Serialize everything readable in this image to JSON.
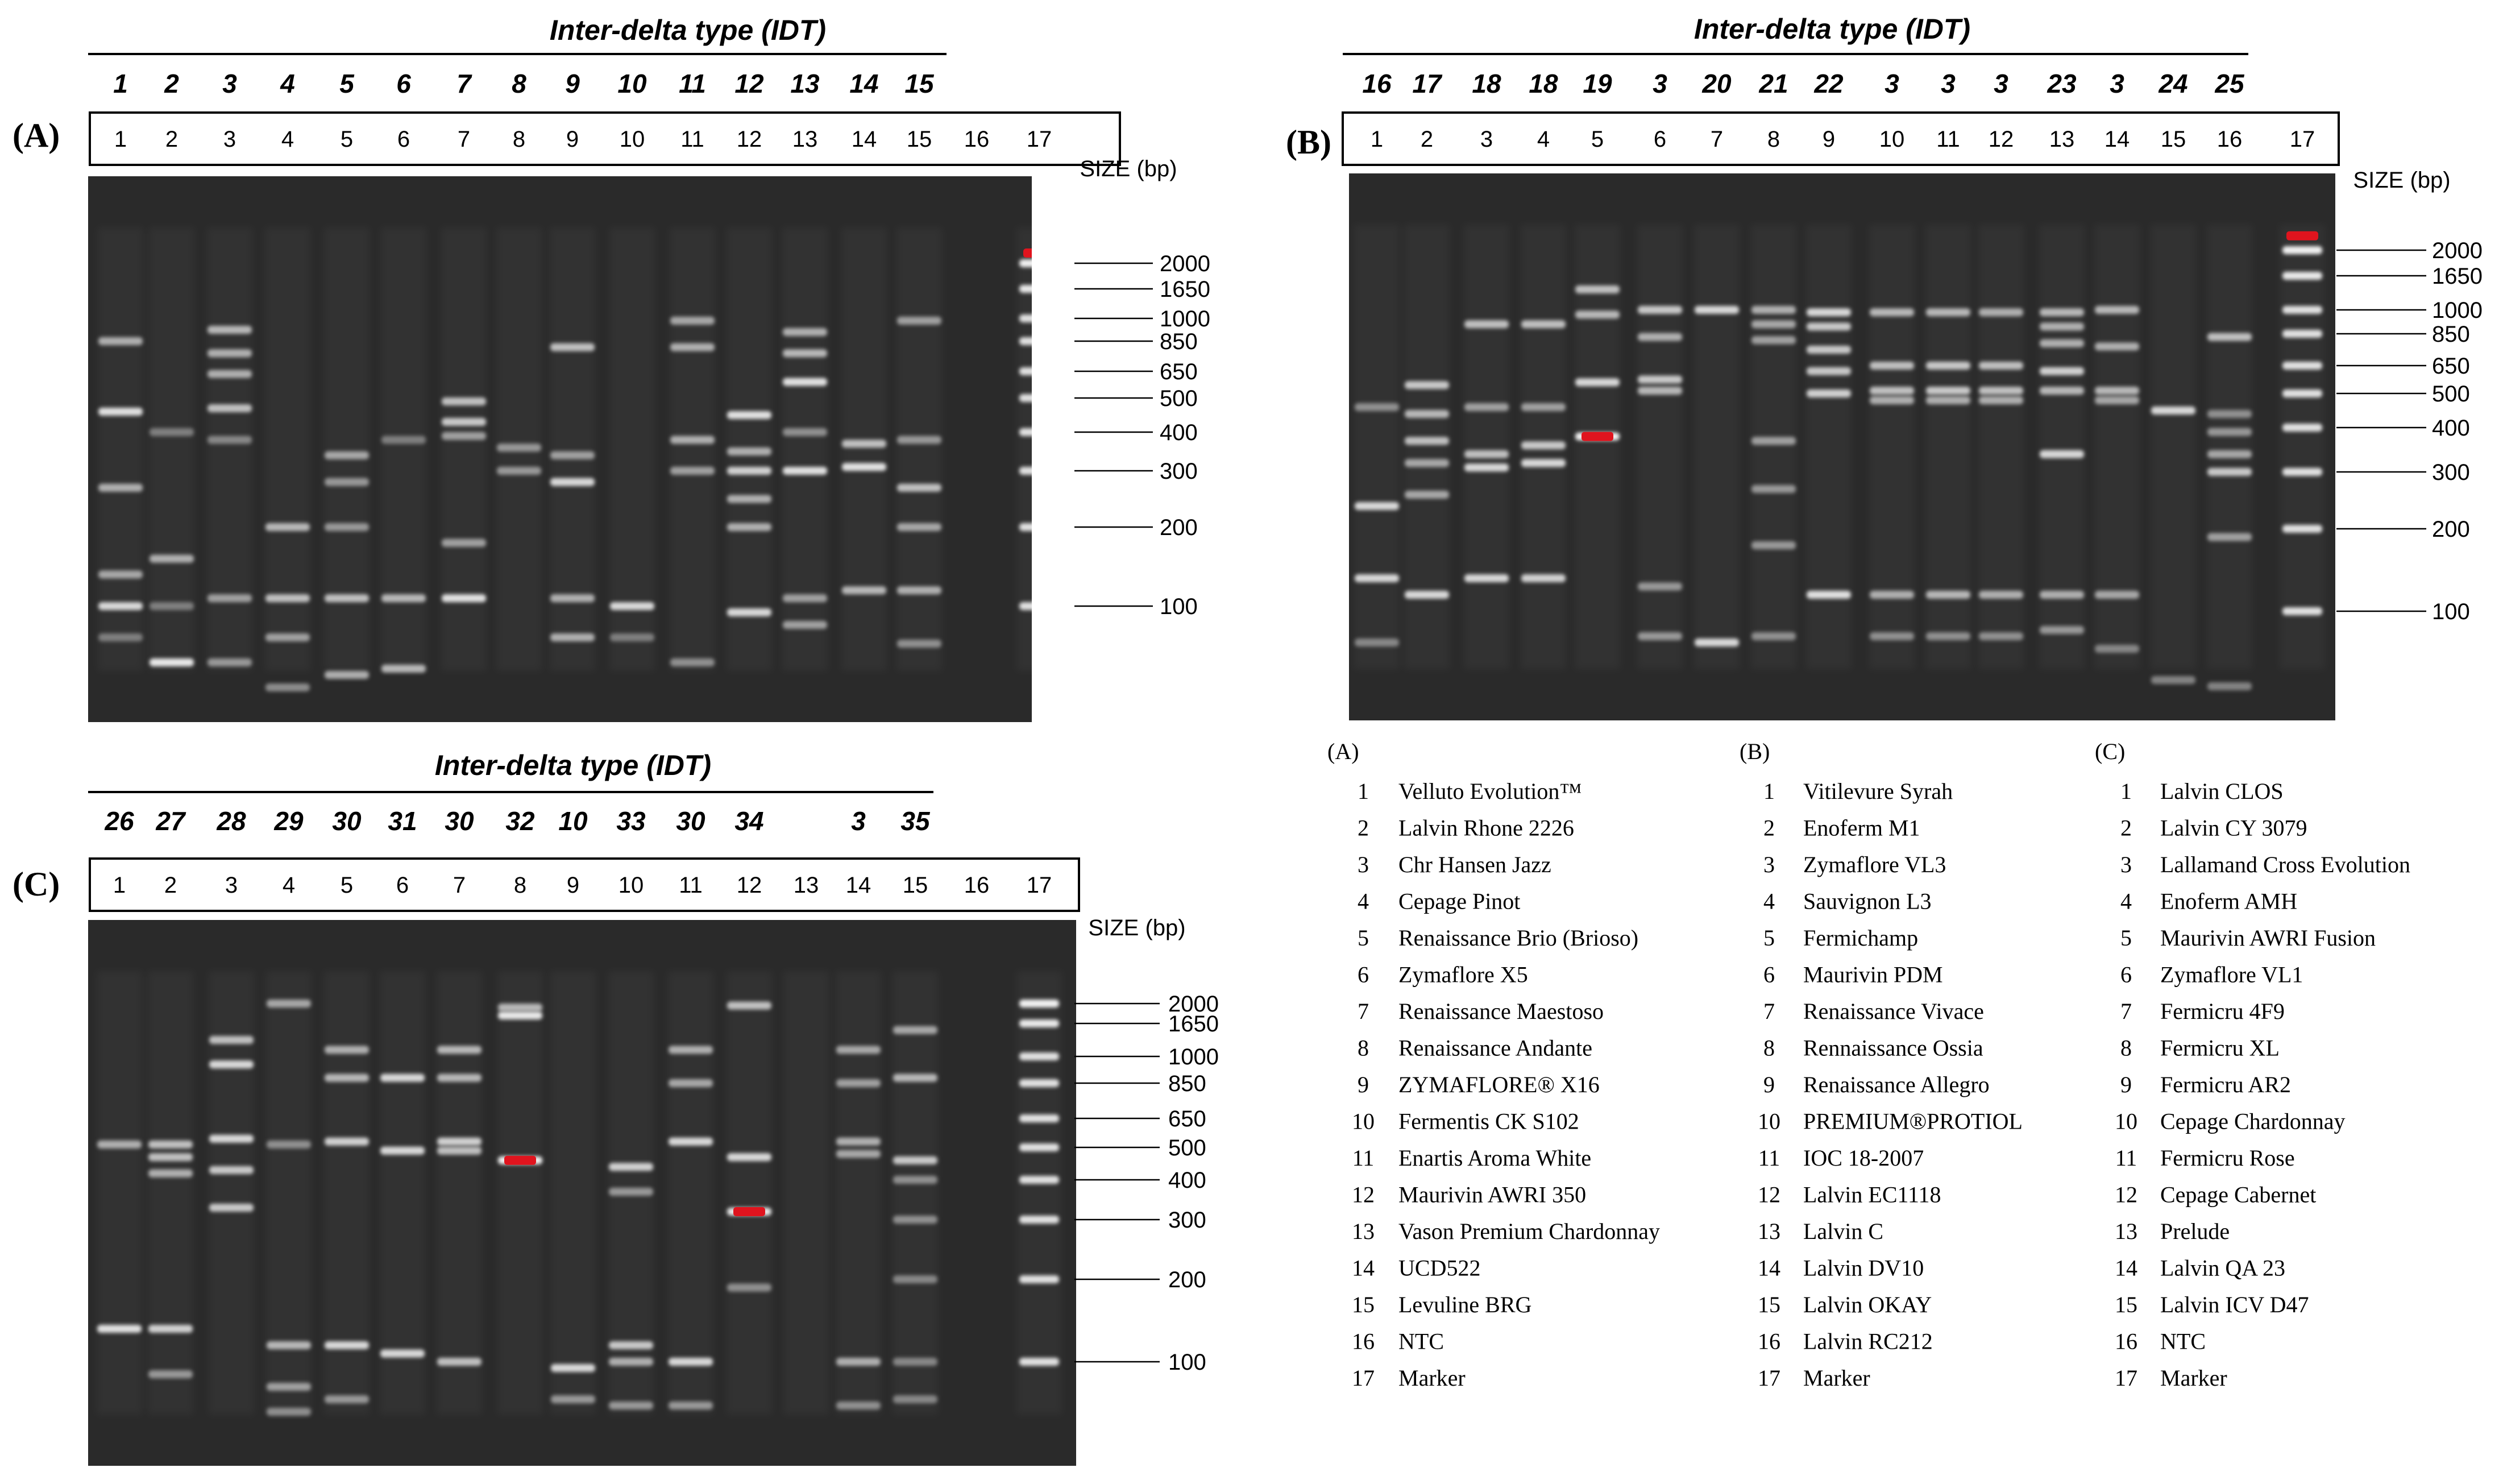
{
  "size_label": "SIZE (bp)",
  "idt_title": "Inter-delta type (IDT)",
  "lanes": [
    "1",
    "2",
    "3",
    "4",
    "5",
    "6",
    "7",
    "8",
    "9",
    "10",
    "11",
    "12",
    "13",
    "14",
    "15",
    "16",
    "17"
  ],
  "panels": [
    {
      "id": "A",
      "letter": "(A)",
      "idt": [
        "1",
        "2",
        "3",
        "4",
        "5",
        "6",
        "7",
        "8",
        "9",
        "10",
        "11",
        "12",
        "13",
        "14",
        "15"
      ],
      "ladder": [
        "2000",
        "1650",
        "1000",
        "850",
        "650",
        "500",
        "400",
        "300",
        "200",
        "100"
      ]
    },
    {
      "id": "B",
      "letter": "(B)",
      "idt": [
        "16",
        "17",
        "18",
        "18",
        "19",
        "3",
        "20",
        "21",
        "22",
        "3",
        "3",
        "3",
        "23",
        "3",
        "24",
        "25"
      ],
      "ladder": [
        "2000",
        "1650",
        "1000",
        "850",
        "650",
        "500",
        "400",
        "300",
        "200",
        "100"
      ]
    },
    {
      "id": "C",
      "letter": "(C)",
      "idt": [
        "26",
        "27",
        "28",
        "29",
        "30",
        "31",
        "30",
        "32",
        "10",
        "33",
        "30",
        "34",
        "",
        "3",
        "35"
      ],
      "ladder": [
        "2000",
        "1650",
        "1000",
        "850",
        "650",
        "500",
        "400",
        "300",
        "200",
        "100"
      ]
    }
  ],
  "legend": [
    {
      "heading": "(A)",
      "entries": [
        {
          "n": "1",
          "name": "Velluto Evolution™"
        },
        {
          "n": "2",
          "name": "Lalvin Rhone 2226"
        },
        {
          "n": "3",
          "name": "Chr Hansen Jazz"
        },
        {
          "n": "4",
          "name": "Cepage Pinot"
        },
        {
          "n": "5",
          "name": "Renaissance Brio (Brioso)"
        },
        {
          "n": "6",
          "name": "Zymaflore X5"
        },
        {
          "n": "7",
          "name": "Renaissance Maestoso"
        },
        {
          "n": "8",
          "name": "Renaissance Andante"
        },
        {
          "n": "9",
          "name": "ZYMAFLORE® X16"
        },
        {
          "n": "10",
          "name": "Fermentis CK S102"
        },
        {
          "n": "11",
          "name": "Enartis Aroma White"
        },
        {
          "n": "12",
          "name": "Maurivin AWRI 350"
        },
        {
          "n": "13",
          "name": "Vason Premium Chardonnay"
        },
        {
          "n": "14",
          "name": "UCD522"
        },
        {
          "n": "15",
          "name": "Levuline BRG"
        },
        {
          "n": "16",
          "name": "NTC"
        },
        {
          "n": "17",
          "name": "Marker"
        }
      ]
    },
    {
      "heading": "(B)",
      "entries": [
        {
          "n": "1",
          "name": "Vitilevure Syrah"
        },
        {
          "n": "2",
          "name": "Enoferm M1"
        },
        {
          "n": "3",
          "name": "Zymaflore VL3"
        },
        {
          "n": "4",
          "name": "Sauvignon L3"
        },
        {
          "n": "5",
          "name": "Fermichamp"
        },
        {
          "n": "6",
          "name": "Maurivin PDM"
        },
        {
          "n": "7",
          "name": "Renaissance Vivace"
        },
        {
          "n": "8",
          "name": "Rennaissance Ossia"
        },
        {
          "n": "9",
          "name": "Renaissance Allegro"
        },
        {
          "n": "10",
          "name": "PREMIUM®PROTIOL"
        },
        {
          "n": "11",
          "name": "IOC 18-2007"
        },
        {
          "n": "12",
          "name": "Lalvin EC1118"
        },
        {
          "n": "13",
          "name": "Lalvin C"
        },
        {
          "n": "14",
          "name": "Lalvin DV10"
        },
        {
          "n": "15",
          "name": "Lalvin OKAY"
        },
        {
          "n": "16",
          "name": "Lalvin RC212"
        },
        {
          "n": "17",
          "name": "Marker"
        }
      ]
    },
    {
      "heading": "(C)",
      "entries": [
        {
          "n": "1",
          "name": "Lalvin CLOS"
        },
        {
          "n": "2",
          "name": "Lalvin CY 3079"
        },
        {
          "n": "3",
          "name": "Lallamand Cross Evolution"
        },
        {
          "n": "4",
          "name": "Enoferm AMH"
        },
        {
          "n": "5",
          "name": "Maurivin AWRI Fusion"
        },
        {
          "n": "6",
          "name": "Zymaflore VL1"
        },
        {
          "n": "7",
          "name": "Fermicru 4F9"
        },
        {
          "n": "8",
          "name": "Fermicru XL"
        },
        {
          "n": "9",
          "name": "Fermicru AR2"
        },
        {
          "n": "10",
          "name": "Cepage Chardonnay"
        },
        {
          "n": "11",
          "name": "Fermicru Rose"
        },
        {
          "n": "12",
          "name": "Cepage Cabernet"
        },
        {
          "n": "13",
          "name": "Prelude"
        },
        {
          "n": "14",
          "name": "Lalvin QA 23"
        },
        {
          "n": "15",
          "name": "Lalvin ICV D47"
        },
        {
          "n": "16",
          "name": "NTC"
        },
        {
          "n": "17",
          "name": "Marker"
        }
      ]
    }
  ],
  "colors": {
    "gel_background": "#2a2a2a",
    "band": "#f2f2f2",
    "saturated": "#e0141e"
  }
}
